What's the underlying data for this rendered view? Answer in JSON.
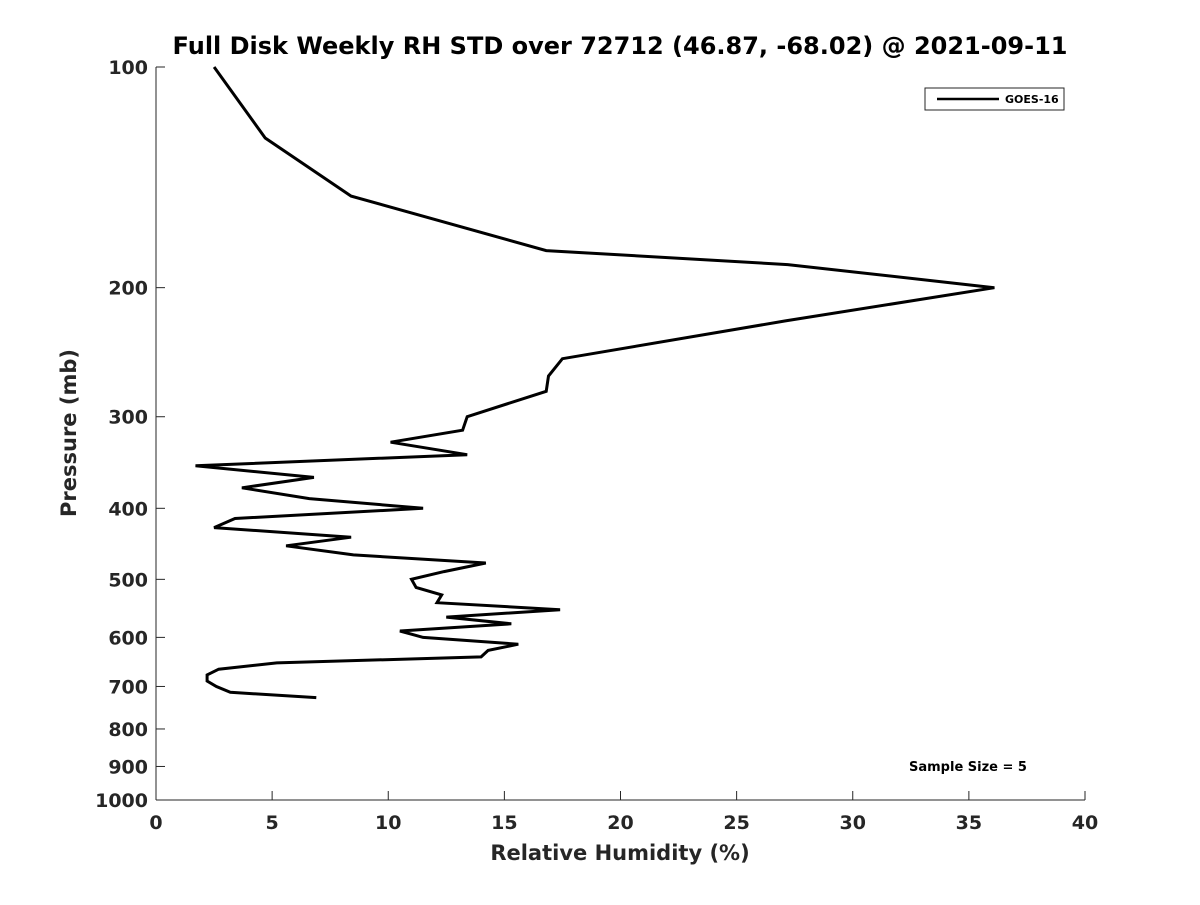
{
  "chart_data": {
    "type": "line",
    "title": "Full Disk Weekly RH STD over 72712 (46.87, -68.02) @ 2021-09-11",
    "xlabel": "Relative Humidity (%)",
    "ylabel": "Pressure (mb)",
    "xlim": [
      0,
      40
    ],
    "ylim": [
      100,
      1000
    ],
    "y_scale": "log",
    "y_reversed": true,
    "x_ticks": [
      0,
      5,
      10,
      15,
      20,
      25,
      30,
      35,
      40
    ],
    "y_ticks": [
      100,
      200,
      300,
      400,
      500,
      600,
      700,
      800,
      900,
      1000
    ],
    "grid": false,
    "legend_position": "top-right",
    "series": [
      {
        "name": "GOES-16",
        "color": "#000000",
        "points": [
          [
            2.5,
            100
          ],
          [
            4.7,
            125
          ],
          [
            8.4,
            150
          ],
          [
            16.8,
            178
          ],
          [
            27.2,
            186
          ],
          [
            36.1,
            200
          ],
          [
            27.1,
            222
          ],
          [
            17.5,
            250
          ],
          [
            16.9,
            264
          ],
          [
            16.8,
            277
          ],
          [
            13.4,
            300
          ],
          [
            13.2,
            313
          ],
          [
            10.1,
            325
          ],
          [
            13.4,
            338
          ],
          [
            1.7,
            350
          ],
          [
            6.8,
            363
          ],
          [
            3.7,
            375
          ],
          [
            6.6,
            388
          ],
          [
            11.5,
            400
          ],
          [
            3.4,
            413
          ],
          [
            2.5,
            425
          ],
          [
            8.4,
            438
          ],
          [
            5.6,
            450
          ],
          [
            8.5,
            463
          ],
          [
            14.2,
            475
          ],
          [
            12.4,
            488
          ],
          [
            11.0,
            500
          ],
          [
            11.2,
            513
          ],
          [
            12.3,
            525
          ],
          [
            12.1,
            538
          ],
          [
            17.4,
            550
          ],
          [
            12.5,
            563
          ],
          [
            15.3,
            575
          ],
          [
            10.5,
            588
          ],
          [
            11.5,
            600
          ],
          [
            15.6,
            613
          ],
          [
            14.3,
            625
          ],
          [
            14.0,
            638
          ],
          [
            5.2,
            650
          ],
          [
            2.7,
            663
          ],
          [
            2.2,
            675
          ],
          [
            2.2,
            688
          ],
          [
            2.6,
            700
          ],
          [
            3.2,
            713
          ],
          [
            6.9,
            725
          ]
        ]
      }
    ],
    "annotations": [
      "Sample Size = 5"
    ]
  }
}
